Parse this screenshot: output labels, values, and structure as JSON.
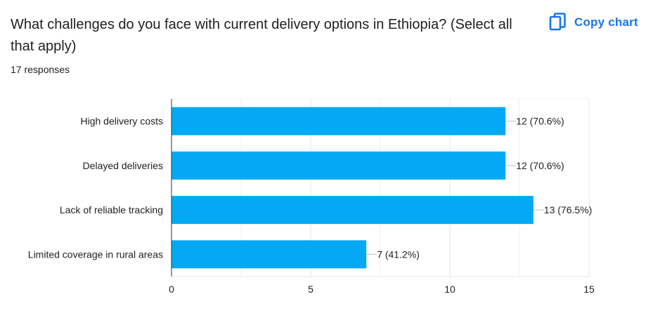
{
  "header": {
    "title": "What challenges do you face with current delivery options in Ethiopia? (Select all that apply)",
    "responses": "17 responses",
    "copy_label": "Copy chart"
  },
  "icons": {
    "copy": "copy-icon"
  },
  "colors": {
    "bar": "#03a9f4",
    "accent": "#1a73e8"
  },
  "chart_data": {
    "type": "bar",
    "orientation": "horizontal",
    "categories": [
      "High delivery costs",
      "Delayed deliveries",
      "Lack of reliable tracking",
      "Limited coverage in rural areas"
    ],
    "values": [
      12,
      12,
      13,
      7
    ],
    "data_labels": [
      "12 (70.6%)",
      "12 (70.6%)",
      "13 (76.5%)",
      "7 (41.2%)"
    ],
    "xlim": [
      0,
      15
    ],
    "xticks": [
      0,
      5,
      10,
      15
    ],
    "grid": true,
    "legend": "none",
    "title": "",
    "xlabel": "",
    "ylabel": ""
  }
}
